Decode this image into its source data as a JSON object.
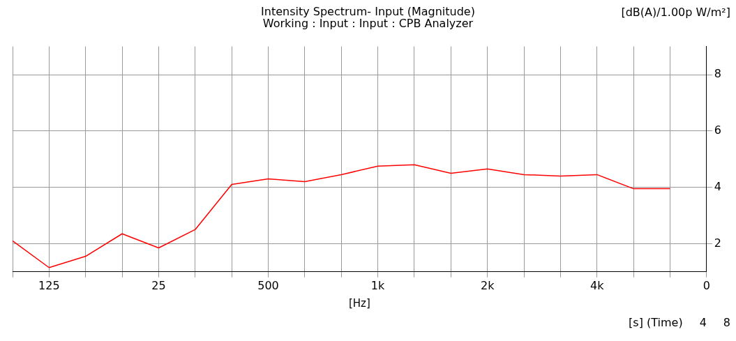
{
  "chart_data": {
    "type": "line",
    "title": "Intensity Spectrum- Input (Magnitude)",
    "subtitle": "Working : Input : Input : CPB Analyzer",
    "xlabel": "[Hz]",
    "ylabel": "[dB(A)/1.00p W/m²]",
    "categories": [
      null,
      "125",
      null,
      null,
      "25",
      null,
      null,
      "500",
      null,
      null,
      "1k",
      null,
      null,
      "2k",
      null,
      null,
      "4k",
      null,
      null,
      "0"
    ],
    "series": [
      {
        "color": "#ff0000",
        "values": [
          2.1,
          1.15,
          1.55,
          2.35,
          1.85,
          2.5,
          4.1,
          4.3,
          4.2,
          4.45,
          4.75,
          4.8,
          4.5,
          4.65,
          4.45,
          4.4,
          4.45,
          3.95,
          3.95,
          null
        ]
      }
    ],
    "ylim": [
      1,
      9
    ],
    "yticks": [
      2,
      4,
      6,
      8
    ],
    "grid": true,
    "marker": "none",
    "line_style": "solid",
    "annotations": [
      "[s] (Time)",
      "4",
      "8"
    ]
  }
}
